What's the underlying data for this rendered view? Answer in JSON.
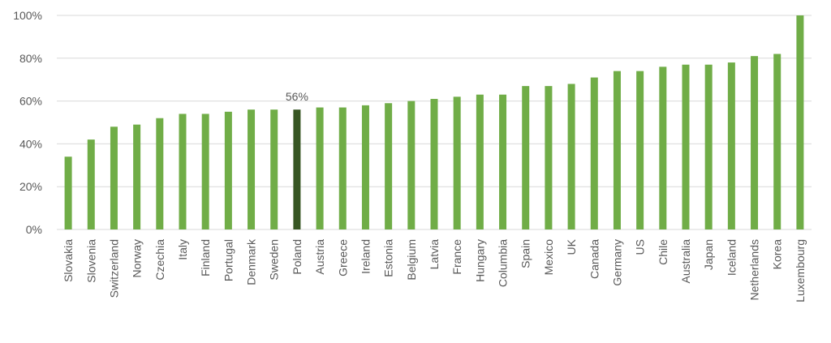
{
  "chart_data": {
    "type": "bar",
    "categories": [
      "Slovakia",
      "Slovenia",
      "Switzerland",
      "Norway",
      "Czechia",
      "Italy",
      "Finland",
      "Portugal",
      "Denmark",
      "Sweden",
      "Poland",
      "Austria",
      "Greece",
      "Ireland",
      "Estonia",
      "Belgium",
      "Latvia",
      "France",
      "Hungary",
      "Columbia",
      "Spain",
      "Mexico",
      "UK",
      "Canada",
      "Germany",
      "US",
      "Chile",
      "Australia",
      "Japan",
      "Iceland",
      "Netherlands",
      "Korea",
      "Luxembourg"
    ],
    "values": [
      34,
      42,
      48,
      49,
      52,
      54,
      54,
      55,
      56,
      56,
      56,
      57,
      57,
      58,
      59,
      60,
      61,
      62,
      63,
      63,
      67,
      67,
      68,
      71,
      74,
      74,
      76,
      77,
      77,
      78,
      81,
      82,
      100
    ],
    "highlight": {
      "category": "Poland",
      "label": "56%"
    },
    "ylim": [
      0,
      100
    ],
    "yticks": [
      "0%",
      "20%",
      "40%",
      "60%",
      "80%",
      "100%"
    ],
    "ytick_values": [
      0,
      20,
      40,
      60,
      80,
      100
    ],
    "grid": true,
    "colors": {
      "bar": "#70ad47",
      "highlight": "#375623",
      "grid": "#d9d9d9",
      "text": "#595959"
    }
  }
}
